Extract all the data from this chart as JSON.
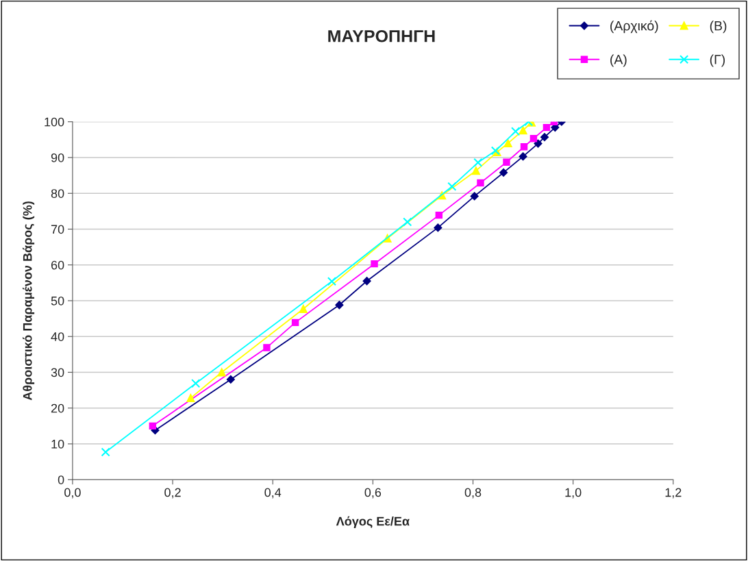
{
  "chart_data": {
    "type": "line",
    "title": "ΜΑΥΡΟΠΗΓΗ",
    "xlabel": "Λόγος Εε/Εα",
    "ylabel": "Αθροιστικό Παραμένον Βάρος (%)",
    "xlim": [
      0,
      1.2
    ],
    "xticks": [
      {
        "value": 0,
        "label": "0,0"
      },
      {
        "value": 0.2,
        "label": "0,2"
      },
      {
        "value": 0.4,
        "label": "0,4"
      },
      {
        "value": 0.6,
        "label": "0,6"
      },
      {
        "value": 0.8,
        "label": "0,8"
      },
      {
        "value": 1.0,
        "label": "1,0"
      },
      {
        "value": 1.2,
        "label": "1,2"
      }
    ],
    "ylim": [
      0,
      100
    ],
    "yticks": [
      0,
      10,
      20,
      30,
      40,
      50,
      60,
      70,
      80,
      90,
      100
    ],
    "grid": "y",
    "legend": "top right",
    "series": [
      {
        "name": "(Αρχικό)",
        "color": "#000080",
        "marker": "diamond",
        "x": [
          0.165,
          0.316,
          0.533,
          0.588,
          0.73,
          0.803,
          0.861,
          0.9,
          0.93,
          0.943,
          0.964,
          0.977
        ],
        "values": [
          13.8,
          28.0,
          48.8,
          55.5,
          70.4,
          79.2,
          85.8,
          90.3,
          93.9,
          95.7,
          98.4,
          100
        ]
      },
      {
        "name": "(Α)",
        "color": "#ff00ff",
        "marker": "square",
        "x": [
          0.16,
          0.388,
          0.445,
          0.603,
          0.732,
          0.815,
          0.867,
          0.902,
          0.921,
          0.947,
          0.962
        ],
        "values": [
          15.0,
          36.9,
          43.9,
          60.3,
          73.9,
          82.9,
          88.7,
          93.0,
          95.3,
          98.4,
          100
        ]
      },
      {
        "name": "(Β)",
        "color": "#ffff00",
        "marker": "triangle",
        "x": [
          0.236,
          0.298,
          0.461,
          0.629,
          0.738,
          0.806,
          0.848,
          0.87,
          0.9,
          0.917
        ],
        "values": [
          22.8,
          30.0,
          47.7,
          67.4,
          79.4,
          86.3,
          91.5,
          94.0,
          97.6,
          99.8
        ]
      },
      {
        "name": "(Γ)",
        "color": "#00ffff",
        "marker": "cross",
        "x": [
          0.066,
          0.246,
          0.518,
          0.669,
          0.758,
          0.81,
          0.845,
          0.885,
          0.911
        ],
        "values": [
          7.7,
          26.9,
          55.4,
          72.0,
          81.9,
          88.6,
          91.9,
          97.3,
          100
        ]
      }
    ]
  }
}
